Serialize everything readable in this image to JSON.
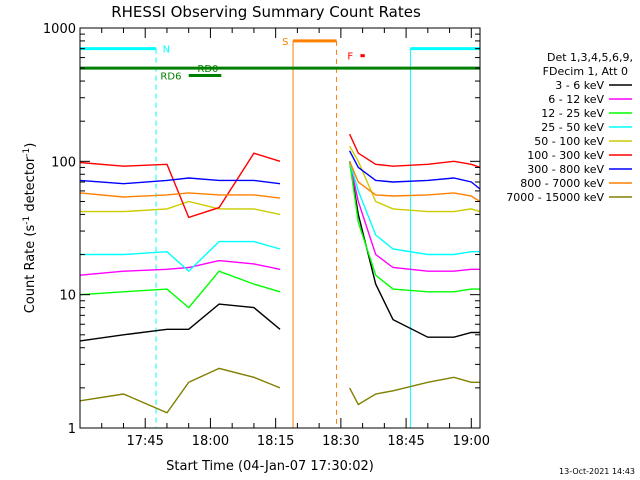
{
  "chart_data": {
    "type": "line",
    "title": "RHESSI Observing Summary Count Rates",
    "xlabel": "Start Time (04-Jan-07 17:30:02)",
    "ylabel_main": "Count Rate (s",
    "ylabel_sup1": "-1",
    "ylabel_mid": " detector",
    "ylabel_sup2": "-1",
    "ylabel_end": ")",
    "yscale": "log",
    "ylim": [
      1,
      1000
    ],
    "xlim_minutes": [
      0,
      92
    ],
    "xtick_minutes": [
      15,
      30,
      45,
      60,
      75,
      90
    ],
    "xticks": [
      "17:45",
      "18:00",
      "18:15",
      "18:30",
      "18:45",
      "19:00"
    ],
    "yticks": [
      "1",
      "10",
      "100",
      "1000"
    ],
    "legend_header": [
      "Det 1,3,4,5,6,9,",
      "FDecim 1, Att 0"
    ],
    "series": [
      {
        "name": "3 - 6 keV",
        "color": "#000000",
        "x": [
          0,
          10,
          20,
          25,
          32,
          40,
          46,
          50,
          62,
          64,
          68,
          72,
          80,
          86,
          90,
          92
        ],
        "y": [
          4.5,
          5,
          5.5,
          5.5,
          8.5,
          8.0,
          5.5,
          5.0,
          100,
          40,
          12,
          6.5,
          4.8,
          4.8,
          5.2,
          5.2
        ]
      },
      {
        "name": "6 - 12 keV",
        "color": "#ff00ff",
        "x": [
          0,
          10,
          20,
          25,
          32,
          40,
          46,
          50,
          62,
          64,
          68,
          72,
          80,
          86,
          90,
          92
        ],
        "y": [
          14,
          15,
          15.5,
          16,
          18,
          17,
          15.5,
          15,
          100,
          50,
          20,
          16,
          15,
          15,
          15.5,
          15.5
        ]
      },
      {
        "name": "12 - 25 keV",
        "color": "#00ff00",
        "x": [
          0,
          10,
          20,
          25,
          32,
          40,
          46,
          50,
          62,
          64,
          68,
          72,
          80,
          86,
          90,
          92
        ],
        "y": [
          10,
          10.5,
          11,
          8,
          15,
          12,
          10.5,
          10,
          100,
          35,
          14,
          11,
          10.5,
          10.5,
          11,
          11
        ]
      },
      {
        "name": "25 - 50 keV",
        "color": "#00ffff",
        "x": [
          0,
          10,
          20,
          25,
          32,
          40,
          46,
          50,
          62,
          64,
          68,
          72,
          80,
          86,
          90,
          92
        ],
        "y": [
          20,
          20,
          21,
          15,
          25,
          25,
          22,
          21,
          100,
          60,
          28,
          22,
          20,
          20,
          21,
          21
        ]
      },
      {
        "name": "50 - 100 keV",
        "color": "#cccc00",
        "x": [
          0,
          10,
          20,
          25,
          32,
          40,
          46,
          50,
          62,
          64,
          68,
          72,
          80,
          86,
          90,
          92
        ],
        "y": [
          42,
          42,
          44,
          50,
          44,
          44,
          40,
          42,
          130,
          100,
          50,
          44,
          42,
          42,
          44,
          42
        ]
      },
      {
        "name": "100 - 300 keV",
        "color": "#ff0000",
        "x": [
          0,
          10,
          20,
          25,
          32,
          40,
          46,
          50,
          62,
          64,
          68,
          72,
          80,
          86,
          90,
          92
        ],
        "y": [
          98,
          92,
          95,
          38,
          45,
          115,
          100,
          95,
          160,
          115,
          95,
          92,
          95,
          100,
          95,
          90
        ]
      },
      {
        "name": "300 - 800 keV",
        "color": "#0000ff",
        "x": [
          0,
          10,
          20,
          25,
          32,
          40,
          46,
          50,
          62,
          64,
          68,
          72,
          80,
          86,
          90,
          92
        ],
        "y": [
          72,
          68,
          72,
          75,
          72,
          72,
          68,
          65,
          120,
          90,
          72,
          70,
          72,
          75,
          70,
          62
        ]
      },
      {
        "name": "800 - 7000 keV",
        "color": "#ff8000",
        "x": [
          0,
          10,
          20,
          25,
          32,
          40,
          46,
          50,
          62,
          64,
          68,
          72,
          80,
          86,
          90,
          92
        ],
        "y": [
          58,
          54,
          56,
          58,
          56,
          56,
          53,
          50,
          100,
          70,
          56,
          55,
          56,
          58,
          55,
          50
        ]
      },
      {
        "name": "7000 - 15000 keV",
        "color": "#808000",
        "x": [
          0,
          10,
          20,
          25,
          32,
          40,
          46,
          50,
          62,
          64,
          68,
          72,
          80,
          86,
          90,
          92
        ],
        "y": [
          1.6,
          1.8,
          1.3,
          2.2,
          2.8,
          2.4,
          2.0,
          1.8,
          2.0,
          1.5,
          1.8,
          1.9,
          2.2,
          2.4,
          2.2,
          2.2
        ]
      }
    ],
    "data_gaps": [
      [
        47.5,
        61
      ]
    ],
    "intervals": [
      {
        "label": "N",
        "color": "#00ffff",
        "level": 700,
        "segments": [
          [
            0,
            17.5
          ],
          [
            76,
            92
          ]
        ],
        "boundaries": [
          0,
          17.5,
          76,
          92
        ],
        "label_at": 19
      },
      {
        "label": "S",
        "color": "#ff8000",
        "level": 800,
        "segments": [
          [
            49,
            59
          ]
        ],
        "boundaries": [
          49,
          59
        ],
        "label_at": 46.5
      },
      {
        "label": "F",
        "color": "#ff0000",
        "level": 620,
        "segments": [
          [
            64.5,
            65.5
          ]
        ],
        "boundaries": [],
        "label_at": 61.5
      },
      {
        "label": "RD0",
        "color": "#008000",
        "level": 500,
        "segments": [
          [
            0,
            92
          ]
        ],
        "boundaries": [],
        "label_at": 27
      },
      {
        "label": "RD6",
        "color": "#008000",
        "level": 440,
        "segments": [
          [
            25,
            32.5
          ]
        ],
        "boundaries": [],
        "label_at": 18.5
      }
    ],
    "timestamp": "13-Oct-2021 14:43"
  }
}
